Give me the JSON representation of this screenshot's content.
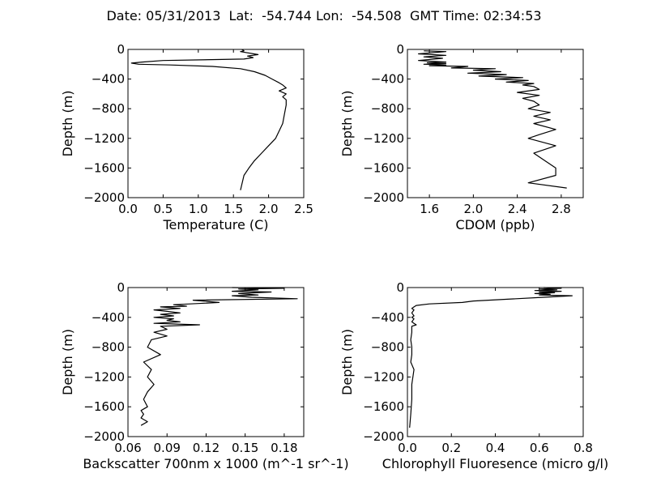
{
  "title": "Date: 05/31/2013  Lat:  -54.744 Lon:  -54.508  GMT Time: 02:34:53",
  "chart_data": [
    {
      "type": "line",
      "xlabel": "Temperature (C)",
      "ylabel": "Depth (m)",
      "xlim": [
        0.0,
        2.5
      ],
      "ylim": [
        -2000,
        0
      ],
      "xticks": [
        0.0,
        0.5,
        1.0,
        1.5,
        2.0,
        2.5
      ],
      "xtick_labels": [
        "0.0",
        "0.5",
        "1.0",
        "1.5",
        "2.0",
        "2.5"
      ],
      "yticks": [
        0,
        -400,
        -800,
        -1200,
        -1600,
        -2000
      ],
      "ytick_labels": [
        "0",
        "−400",
        "−800",
        "−1200",
        "−1600",
        "−2000"
      ],
      "grid": false,
      "series": [
        {
          "x": [
            1.62,
            1.65,
            1.6,
            1.85,
            1.7,
            1.78,
            1.65,
            0.5,
            0.2,
            0.05,
            0.15,
            0.6,
            1.2,
            1.6,
            1.8,
            1.95,
            2.05,
            2.15,
            2.2,
            2.25,
            2.15,
            2.25,
            2.2,
            2.25,
            2.25,
            2.22,
            2.2,
            2.15,
            2.1,
            2.0,
            1.9,
            1.8,
            1.72,
            1.65,
            1.6
          ],
          "y": [
            0,
            -20,
            -30,
            -70,
            -90,
            -110,
            -130,
            -150,
            -170,
            -185,
            -200,
            -210,
            -230,
            -260,
            -300,
            -350,
            -400,
            -450,
            -480,
            -520,
            -560,
            -600,
            -640,
            -680,
            -750,
            -900,
            -1000,
            -1100,
            -1200,
            -1300,
            -1400,
            -1500,
            -1600,
            -1700,
            -1900
          ]
        }
      ]
    },
    {
      "type": "line",
      "xlabel": "CDOM (ppb)",
      "ylabel": "Depth (m)",
      "xlim": [
        1.4,
        3.0
      ],
      "ylim": [
        -2000,
        0
      ],
      "xticks": [
        1.6,
        2.0,
        2.4,
        2.8
      ],
      "xtick_labels": [
        "1.6",
        "2.0",
        "2.4",
        "2.8"
      ],
      "yticks": [
        0,
        -400,
        -800,
        -1200,
        -1600,
        -2000
      ],
      "ytick_labels": [
        "0",
        "−400",
        "−800",
        "−1200",
        "−1600",
        "−2000"
      ],
      "grid": false,
      "series": [
        {
          "x": [
            1.55,
            1.75,
            1.5,
            1.75,
            1.55,
            1.72,
            1.5,
            1.75,
            1.58,
            1.75,
            1.55,
            1.75,
            1.6,
            1.95,
            1.8,
            2.2,
            2.0,
            2.25,
            1.95,
            2.3,
            2.05,
            2.45,
            2.2,
            2.5,
            2.3,
            2.55,
            2.45,
            2.55,
            2.6,
            2.4,
            2.6,
            2.45,
            2.55,
            2.6,
            2.5,
            2.7,
            2.55,
            2.7,
            2.55,
            2.75,
            2.6,
            2.5,
            2.75,
            2.55,
            2.65,
            2.75,
            2.75,
            2.5,
            2.85
          ],
          "y": [
            -20,
            -30,
            -60,
            -80,
            -100,
            -120,
            -150,
            -170,
            -180,
            -190,
            -200,
            -210,
            -220,
            -230,
            -250,
            -260,
            -280,
            -300,
            -320,
            -340,
            -360,
            -380,
            -400,
            -420,
            -440,
            -460,
            -480,
            -500,
            -540,
            -580,
            -620,
            -660,
            -700,
            -750,
            -800,
            -850,
            -900,
            -950,
            -1000,
            -1080,
            -1150,
            -1200,
            -1300,
            -1400,
            -1500,
            -1600,
            -1700,
            -1800,
            -1870
          ]
        }
      ]
    },
    {
      "type": "line",
      "xlabel": "Backscatter 700nm x 1000 (m^-1 sr^-1)",
      "ylabel": "Depth (m)",
      "xlim": [
        0.06,
        0.195
      ],
      "ylim": [
        -2000,
        0
      ],
      "xticks": [
        0.06,
        0.09,
        0.12,
        0.15,
        0.18
      ],
      "xtick_labels": [
        "0.06",
        "0.09",
        "0.12",
        "0.15",
        "0.18"
      ],
      "yticks": [
        0,
        -400,
        -800,
        -1200,
        -1600,
        -2000
      ],
      "ytick_labels": [
        "0",
        "−400",
        "−800",
        "−1200",
        "−1600",
        "−2000"
      ],
      "grid": false,
      "series": [
        {
          "x": [
            0.14,
            0.18,
            0.145,
            0.16,
            0.14,
            0.17,
            0.145,
            0.16,
            0.14,
            0.155,
            0.19,
            0.11,
            0.13,
            0.095,
            0.105,
            0.085,
            0.1,
            0.08,
            0.09,
            0.1,
            0.085,
            0.095,
            0.08,
            0.095,
            0.09,
            0.1,
            0.08,
            0.115,
            0.085,
            0.09,
            0.08,
            0.09,
            0.078,
            0.075,
            0.085,
            0.072,
            0.078,
            0.075,
            0.08,
            0.075,
            0.072,
            0.075,
            0.07,
            0.072,
            0.07,
            0.075,
            0.07
          ],
          "y": [
            0,
            -10,
            -20,
            -30,
            -50,
            -60,
            -80,
            -100,
            -110,
            -130,
            -150,
            -170,
            -200,
            -230,
            -250,
            -260,
            -280,
            -300,
            -320,
            -340,
            -360,
            -380,
            -400,
            -420,
            -440,
            -460,
            -480,
            -500,
            -520,
            -560,
            -600,
            -650,
            -700,
            -800,
            -900,
            -1000,
            -1100,
            -1200,
            -1300,
            -1400,
            -1500,
            -1600,
            -1650,
            -1700,
            -1750,
            -1800,
            -1850
          ]
        }
      ]
    },
    {
      "type": "line",
      "xlabel": "Chlorophyll Fluoresence (micro g/l)",
      "ylabel": "Depth (m)",
      "xlim": [
        0.0,
        0.8
      ],
      "ylim": [
        -2000,
        0
      ],
      "xticks": [
        0.0,
        0.2,
        0.4,
        0.6,
        0.8
      ],
      "xtick_labels": [
        "0.0",
        "0.2",
        "0.4",
        "0.6",
        "0.8"
      ],
      "yticks": [
        0,
        -400,
        -800,
        -1200,
        -1600,
        -2000
      ],
      "ytick_labels": [
        "0",
        "−400",
        "−800",
        "−1200",
        "−1600",
        "−2000"
      ],
      "grid": false,
      "series": [
        {
          "x": [
            0.62,
            0.7,
            0.6,
            0.68,
            0.58,
            0.7,
            0.6,
            0.67,
            0.58,
            0.65,
            0.6,
            0.75,
            0.62,
            0.3,
            0.25,
            0.1,
            0.04,
            0.03,
            0.02,
            0.03,
            0.02,
            0.03,
            0.02,
            0.03,
            0.02,
            0.03,
            0.04,
            0.02,
            0.02,
            0.015,
            0.02,
            0.02,
            0.015,
            0.03,
            0.02,
            0.02,
            0.015,
            0.01
          ],
          "y": [
            0,
            -10,
            -20,
            -30,
            -40,
            -50,
            -60,
            -70,
            -80,
            -90,
            -100,
            -110,
            -130,
            -180,
            -200,
            -220,
            -240,
            -260,
            -280,
            -300,
            -340,
            -380,
            -400,
            -420,
            -460,
            -480,
            -500,
            -520,
            -600,
            -700,
            -800,
            -900,
            -1000,
            -1100,
            -1300,
            -1500,
            -1700,
            -1880
          ]
        }
      ]
    }
  ]
}
